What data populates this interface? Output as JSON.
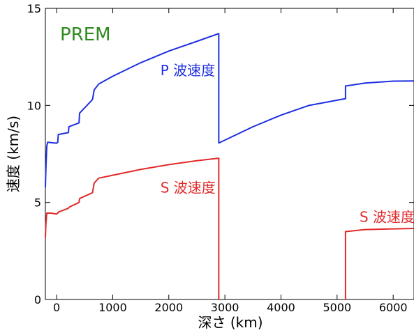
{
  "chart_data": {
    "type": "line",
    "title": "PREM",
    "xlabel": "深さ (km)",
    "ylabel": "速度 (km/s)",
    "xlim": [
      -200,
      6371
    ],
    "ylim": [
      0,
      15
    ],
    "xticks": [
      0,
      1000,
      2000,
      3000,
      4000,
      5000,
      6000
    ],
    "yticks": [
      0,
      5,
      10,
      15
    ],
    "grid": false,
    "colors": {
      "p_wave": "#1f2fe0",
      "s_wave": "#e12a2a",
      "title": "#2f8a1f",
      "axis": "#000000"
    },
    "series": [
      {
        "name": "P 波速度",
        "color": "#1f2fe0",
        "points": [
          [
            -200,
            5.8
          ],
          [
            -190,
            6.8
          ],
          [
            -175,
            7.9
          ],
          [
            -160,
            8.1
          ],
          [
            0,
            8.05
          ],
          [
            20,
            8.1
          ],
          [
            30,
            8.5
          ],
          [
            210,
            8.6
          ],
          [
            220,
            8.9
          ],
          [
            400,
            9.1
          ],
          [
            410,
            9.6
          ],
          [
            640,
            10.3
          ],
          [
            670,
            10.8
          ],
          [
            750,
            11.1
          ],
          [
            1000,
            11.5
          ],
          [
            1500,
            12.2
          ],
          [
            2000,
            12.8
          ],
          [
            2500,
            13.3
          ],
          [
            2891,
            13.7
          ],
          [
            2891,
            8.06
          ],
          [
            3500,
            8.9
          ],
          [
            4000,
            9.5
          ],
          [
            4500,
            10.0
          ],
          [
            5150,
            10.35
          ],
          [
            5150,
            11.0
          ],
          [
            5500,
            11.15
          ],
          [
            6000,
            11.25
          ],
          [
            6371,
            11.26
          ]
        ]
      },
      {
        "name": "S 波速度",
        "color": "#e12a2a",
        "segments": [
          [
            [
              -200,
              3.2
            ],
            [
              -190,
              3.9
            ],
            [
              -175,
              4.45
            ],
            [
              -100,
              4.45
            ],
            [
              0,
              4.4
            ],
            [
              20,
              4.45
            ],
            [
              30,
              4.5
            ],
            [
              210,
              4.7
            ],
            [
              220,
              4.75
            ],
            [
              400,
              5.0
            ],
            [
              410,
              5.2
            ],
            [
              640,
              5.5
            ],
            [
              670,
              6.0
            ],
            [
              750,
              6.25
            ],
            [
              1000,
              6.4
            ],
            [
              1500,
              6.7
            ],
            [
              2000,
              6.95
            ],
            [
              2500,
              7.15
            ],
            [
              2891,
              7.28
            ],
            [
              2891,
              0
            ]
          ],
          [
            [
              5150,
              0
            ],
            [
              5150,
              3.5
            ],
            [
              5500,
              3.6
            ],
            [
              6000,
              3.64
            ],
            [
              6371,
              3.66
            ]
          ]
        ]
      }
    ],
    "annotations": [
      {
        "text": "P 波速度",
        "x": 1850,
        "y": 11.55,
        "series": "P 波速度"
      },
      {
        "text": "S 波速度",
        "x": 1850,
        "y": 5.5,
        "series": "S 波速度"
      },
      {
        "text": "S 波速度",
        "x": 5400,
        "y": 4.0,
        "series": "S 波速度"
      }
    ]
  }
}
